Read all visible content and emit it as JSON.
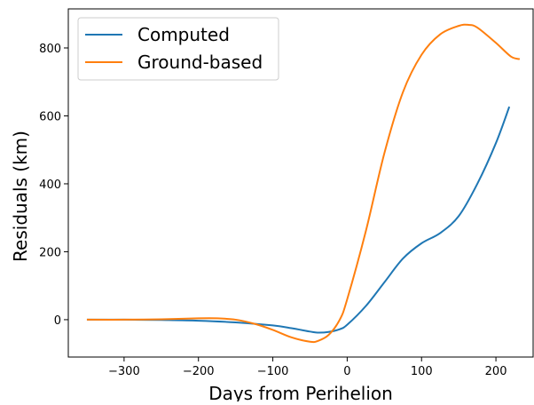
{
  "chart_data": {
    "type": "line",
    "title": "",
    "xlabel": "Days from Perihelion",
    "ylabel": "Residuals (km)",
    "xlim": [
      -375,
      250
    ],
    "ylim": [
      -110,
      915
    ],
    "xticks": [
      -300,
      -200,
      -100,
      0,
      100,
      200
    ],
    "xtick_labels": [
      "−300",
      "−200",
      "−100",
      "0",
      "100",
      "200"
    ],
    "yticks": [
      0,
      200,
      400,
      600,
      800
    ],
    "ytick_labels": [
      "0",
      "200",
      "400",
      "600",
      "800"
    ],
    "grid": false,
    "legend_position": "top-left",
    "series": [
      {
        "name": "Computed",
        "color": "#1f77b4",
        "x": [
          -350,
          -300,
          -250,
          -200,
          -150,
          -100,
          -75,
          -50,
          -40,
          -25,
          -10,
          0,
          25,
          50,
          75,
          100,
          125,
          150,
          175,
          200,
          218
        ],
        "y": [
          0,
          0,
          -1,
          -3,
          -8,
          -17,
          -25,
          -35,
          -38,
          -36,
          -28,
          -15,
          40,
          110,
          180,
          225,
          255,
          305,
          400,
          520,
          627
        ]
      },
      {
        "name": "Ground-based",
        "color": "#ff7f0e",
        "x": [
          -350,
          -300,
          -250,
          -200,
          -175,
          -150,
          -125,
          -100,
          -75,
          -50,
          -40,
          -25,
          -10,
          0,
          25,
          50,
          75,
          100,
          125,
          150,
          163,
          175,
          200,
          220,
          232
        ],
        "y": [
          0,
          0,
          1,
          4,
          4,
          0,
          -12,
          -30,
          -52,
          -65,
          -63,
          -45,
          0,
          60,
          260,
          490,
          670,
          780,
          840,
          865,
          868,
          860,
          815,
          775,
          767
        ]
      }
    ]
  }
}
